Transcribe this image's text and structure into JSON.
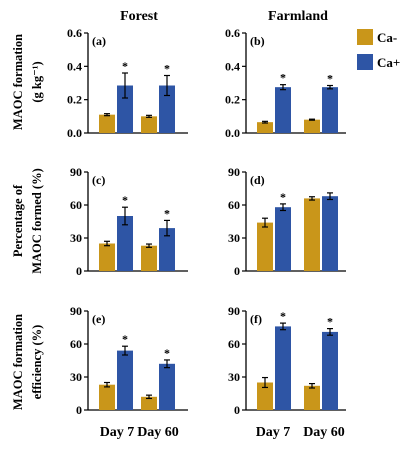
{
  "columns": [
    "Forest",
    "Farmland"
  ],
  "legend": {
    "items": [
      {
        "label": "Ca-",
        "color": "#C9961A"
      },
      {
        "label": "Ca+",
        "color": "#2E55A5"
      }
    ],
    "placement": "right"
  },
  "x_categories": [
    "Day 7",
    "Day 60"
  ],
  "row_ylabels": [
    [
      "MAOC formation",
      "(g kg⁻¹)"
    ],
    [
      "Percentage of",
      "MAOC formed (%)"
    ],
    [
      "MAOC formation",
      "efficiency (%)"
    ]
  ],
  "chart_data": [
    {
      "type": "bar",
      "panel": "(a)",
      "column": "Forest",
      "categories": [
        "Day 7",
        "Day 60"
      ],
      "ylim": [
        0,
        0.6
      ],
      "yticks": [
        "0.0",
        "0.2",
        "0.4",
        "0.6"
      ],
      "series": [
        {
          "name": "Ca-",
          "values": [
            0.11,
            0.1
          ],
          "errors": [
            0.006,
            0.006
          ]
        },
        {
          "name": "Ca+",
          "values": [
            0.285,
            0.285
          ],
          "errors": [
            0.075,
            0.06
          ]
        }
      ],
      "significance": [
        "*",
        "*"
      ]
    },
    {
      "type": "bar",
      "panel": "(b)",
      "column": "Farmland",
      "categories": [
        "Day 7",
        "Day 60"
      ],
      "ylim": [
        0,
        0.6
      ],
      "yticks": [
        "0.0",
        "0.2",
        "0.4",
        "0.6"
      ],
      "series": [
        {
          "name": "Ca-",
          "values": [
            0.065,
            0.08
          ],
          "errors": [
            0.005,
            0.003
          ]
        },
        {
          "name": "Ca+",
          "values": [
            0.275,
            0.275
          ],
          "errors": [
            0.015,
            0.01
          ]
        }
      ],
      "significance": [
        "*",
        "*"
      ]
    },
    {
      "type": "bar",
      "panel": "(c)",
      "column": "Forest",
      "categories": [
        "Day 7",
        "Day 60"
      ],
      "ylim": [
        0,
        90
      ],
      "yticks": [
        "0",
        "30",
        "60",
        "90"
      ],
      "series": [
        {
          "name": "Ca-",
          "values": [
            25,
            23
          ],
          "errors": [
            2,
            1.5
          ]
        },
        {
          "name": "Ca+",
          "values": [
            50,
            39
          ],
          "errors": [
            8,
            7
          ]
        }
      ],
      "significance": [
        "*",
        "*"
      ]
    },
    {
      "type": "bar",
      "panel": "(d)",
      "column": "Farmland",
      "categories": [
        "Day 7",
        "Day 60"
      ],
      "ylim": [
        0,
        90
      ],
      "yticks": [
        "0",
        "30",
        "60",
        "90"
      ],
      "series": [
        {
          "name": "Ca-",
          "values": [
            44,
            66
          ],
          "errors": [
            4,
            1.5
          ]
        },
        {
          "name": "Ca+",
          "values": [
            58,
            68
          ],
          "errors": [
            3,
            3
          ]
        }
      ],
      "significance": [
        "*",
        ""
      ]
    },
    {
      "type": "bar",
      "panel": "(e)",
      "column": "Forest",
      "categories": [
        "Day 7",
        "Day 60"
      ],
      "ylim": [
        0,
        90
      ],
      "yticks": [
        "0",
        "30",
        "60",
        "90"
      ],
      "series": [
        {
          "name": "Ca-",
          "values": [
            23,
            12
          ],
          "errors": [
            2,
            1.5
          ]
        },
        {
          "name": "Ca+",
          "values": [
            54,
            42
          ],
          "errors": [
            4,
            3.5
          ]
        }
      ],
      "significance": [
        "*",
        "*"
      ]
    },
    {
      "type": "bar",
      "panel": "(f)",
      "column": "Farmland",
      "categories": [
        "Day 7",
        "Day 60"
      ],
      "ylim": [
        0,
        90
      ],
      "yticks": [
        "0",
        "30",
        "60",
        "90"
      ],
      "series": [
        {
          "name": "Ca-",
          "values": [
            25,
            22
          ],
          "errors": [
            4.5,
            2
          ]
        },
        {
          "name": "Ca+",
          "values": [
            76,
            71
          ],
          "errors": [
            3,
            3
          ]
        }
      ],
      "significance": [
        "*",
        "*"
      ]
    }
  ]
}
